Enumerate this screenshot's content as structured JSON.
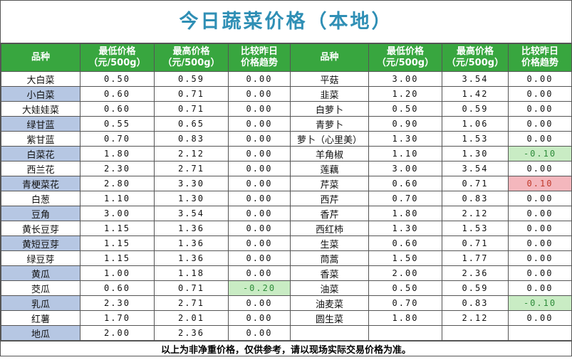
{
  "title": "今日蔬菜价格（本地）",
  "headers": {
    "name": "品种",
    "low_1": "最低价格",
    "low_2": "（元/500g）",
    "high_1": "最高价格",
    "high_2": "（元/500g）",
    "trend_1": "比较昨日",
    "trend_2": "价格趋势"
  },
  "chart_data": {
    "type": "table",
    "title": "今日蔬菜价格（本地）",
    "columns": [
      "品种",
      "最低价格（元/500g）",
      "最高价格（元/500g）",
      "比较昨日价格趋势"
    ],
    "left": [
      {
        "name": "大白菜",
        "low": "0.50",
        "high": "0.59",
        "trend": "0.00"
      },
      {
        "name": "小白菜",
        "low": "0.60",
        "high": "0.71",
        "trend": "0.00"
      },
      {
        "name": "大娃娃菜",
        "low": "0.60",
        "high": "0.71",
        "trend": "0.00"
      },
      {
        "name": "绿甘蓝",
        "low": "0.55",
        "high": "0.65",
        "trend": "0.00"
      },
      {
        "name": "紫甘蓝",
        "low": "0.70",
        "high": "0.83",
        "trend": "0.00"
      },
      {
        "name": "白菜花",
        "low": "1.80",
        "high": "2.12",
        "trend": "0.00"
      },
      {
        "name": "西兰花",
        "low": "2.30",
        "high": "2.71",
        "trend": "0.00"
      },
      {
        "name": "青梗菜花",
        "low": "2.80",
        "high": "3.30",
        "trend": "0.00"
      },
      {
        "name": "白葱",
        "low": "1.10",
        "high": "1.30",
        "trend": "0.00"
      },
      {
        "name": "豆角",
        "low": "3.00",
        "high": "3.54",
        "trend": "0.00"
      },
      {
        "name": "黄长豆芽",
        "low": "1.15",
        "high": "1.36",
        "trend": "0.00"
      },
      {
        "name": "黄短豆芽",
        "low": "1.15",
        "high": "1.36",
        "trend": "0.00"
      },
      {
        "name": "绿豆芽",
        "low": "1.15",
        "high": "1.36",
        "trend": "0.00"
      },
      {
        "name": "黄瓜",
        "low": "1.00",
        "high": "1.18",
        "trend": "0.00"
      },
      {
        "name": "茭瓜",
        "low": "0.60",
        "high": "0.71",
        "trend": "-0.20"
      },
      {
        "name": "乳瓜",
        "low": "2.30",
        "high": "2.71",
        "trend": "0.00"
      },
      {
        "name": "红薯",
        "low": "1.70",
        "high": "2.01",
        "trend": "0.00"
      },
      {
        "name": "地瓜",
        "low": "2.00",
        "high": "2.36",
        "trend": "0.00"
      }
    ],
    "right": [
      {
        "name": "平菇",
        "low": "3.00",
        "high": "3.54",
        "trend": "0.00"
      },
      {
        "name": "韭菜",
        "low": "1.20",
        "high": "1.42",
        "trend": "0.00"
      },
      {
        "name": "白萝卜",
        "low": "0.50",
        "high": "0.59",
        "trend": "0.00"
      },
      {
        "name": "青萝卜",
        "low": "0.90",
        "high": "1.06",
        "trend": "0.00"
      },
      {
        "name": "萝卜（心里美）",
        "low": "1.30",
        "high": "1.53",
        "trend": "0.00"
      },
      {
        "name": "羊角椒",
        "low": "1.10",
        "high": "1.30",
        "trend": "-0.10"
      },
      {
        "name": "莲藕",
        "low": "3.00",
        "high": "3.54",
        "trend": "0.00"
      },
      {
        "name": "芹菜",
        "low": "0.60",
        "high": "0.71",
        "trend": "0.10"
      },
      {
        "name": "西芹",
        "low": "0.70",
        "high": "0.83",
        "trend": "0.00"
      },
      {
        "name": "香芹",
        "low": "1.80",
        "high": "2.12",
        "trend": "0.00"
      },
      {
        "name": "西红柿",
        "low": "1.30",
        "high": "1.53",
        "trend": "0.00"
      },
      {
        "name": "生菜",
        "low": "0.60",
        "high": "0.71",
        "trend": "0.00"
      },
      {
        "name": "茼蒿",
        "low": "1.50",
        "high": "1.77",
        "trend": "0.00"
      },
      {
        "name": "香菜",
        "low": "2.00",
        "high": "2.36",
        "trend": "0.00"
      },
      {
        "name": "油菜",
        "low": "0.50",
        "high": "0.59",
        "trend": "0.00"
      },
      {
        "name": "油麦菜",
        "low": "0.70",
        "high": "0.83",
        "trend": "-0.10"
      },
      {
        "name": "圆生菜",
        "low": "1.80",
        "high": "2.12",
        "trend": "0.00"
      }
    ]
  },
  "footer": "以上为非净重价格，仅供参考，请以现场实际交易价格为准。",
  "colors": {
    "title": "#2f8fb5",
    "header_bg": "#38a63f",
    "shade": "#b6c7e3",
    "up": "#f4b7bd",
    "down": "#c9ecc4"
  }
}
